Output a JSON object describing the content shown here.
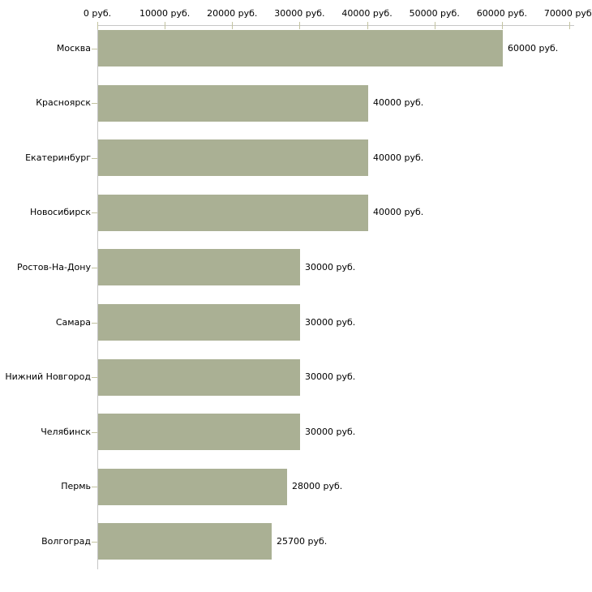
{
  "chart_data": {
    "type": "bar",
    "orientation": "horizontal",
    "title": "",
    "xlabel": "",
    "ylabel": "",
    "xlim": [
      0,
      70000
    ],
    "grid": false,
    "legend_position": "none",
    "x_ticks": [
      0,
      10000,
      20000,
      30000,
      40000,
      50000,
      60000,
      70000
    ],
    "x_tick_labels": [
      "0 руб.",
      "10000 руб.",
      "20000 руб.",
      "30000 руб.",
      "40000 руб.",
      "50000 руб.",
      "60000 руб.",
      "70000 руб."
    ],
    "categories": [
      "Москва",
      "Красноярск",
      "Екатеринбург",
      "Новосибирск",
      "Ростов-На-Дону",
      "Самара",
      "Нижний Новгород",
      "Челябинск",
      "Пермь",
      "Волгоград"
    ],
    "values": [
      60000,
      40000,
      40000,
      40000,
      30000,
      30000,
      30000,
      30000,
      28000,
      25700
    ],
    "value_labels": [
      "60000 руб.",
      "40000 руб.",
      "40000 руб.",
      "40000 руб.",
      "30000 руб.",
      "30000 руб.",
      "30000 руб.",
      "30000 руб.",
      "28000 руб.",
      "25700 руб."
    ],
    "colors": {
      "bar": "#aab094",
      "axis_line": "#c6c6c6",
      "tick": "#c3c3a0",
      "text": "#000000",
      "background": "#ffffff"
    }
  }
}
